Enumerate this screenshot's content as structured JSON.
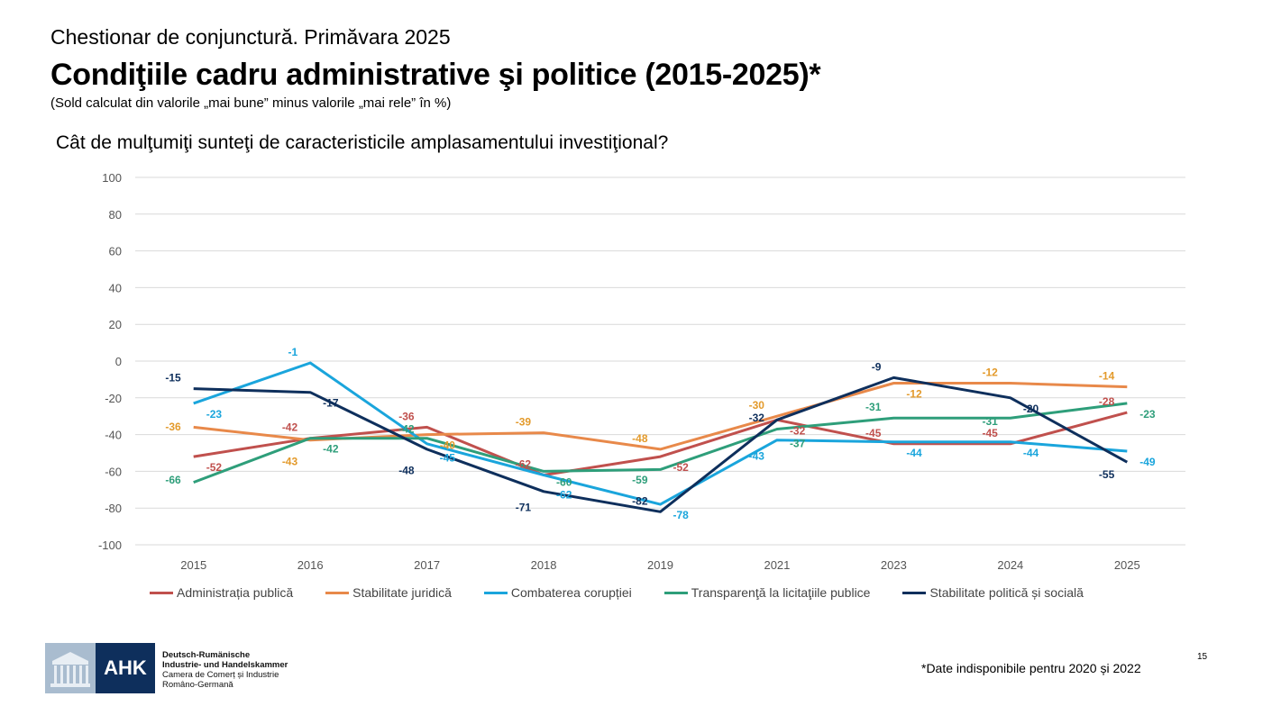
{
  "header": {
    "supertitle": "Chestionar de conjunctură. Primăvara 2025",
    "title": "Condiţiile cadru administrative şi politice (2015-2025)*",
    "subtitle": "(Sold calculat din valorile „mai bune” minus valorile „mai rele” în %)",
    "question": "Cât de mulţumiţi sunteţi de caracteristicile amplasamentului investiţional?"
  },
  "chart_data": {
    "type": "line",
    "categories": [
      "2015",
      "2016",
      "2017",
      "2018",
      "2019",
      "2021",
      "2023",
      "2024",
      "2025"
    ],
    "ylim": [
      -100,
      100
    ],
    "yticks": [
      100,
      80,
      60,
      40,
      20,
      0,
      -20,
      -40,
      -60,
      -80,
      -100
    ],
    "grid": true,
    "legend_position": "bottom",
    "series": [
      {
        "name": "Administrația publică",
        "color": "#c0504d",
        "values": [
          -52,
          -42,
          -36,
          -62,
          -52,
          -32,
          -45,
          -45,
          -28
        ]
      },
      {
        "name": "Stabilitate juridică",
        "color": "#e8894a",
        "values": [
          -36,
          -43,
          -40,
          -39,
          -48,
          -30,
          -12,
          -12,
          -14
        ]
      },
      {
        "name": "Combaterea corupției",
        "color": "#1aa5dc",
        "values": [
          -23,
          -1,
          -45,
          -62,
          -78,
          -43,
          -44,
          -44,
          -49
        ]
      },
      {
        "name": "Transparenţă la licitaţiile publice",
        "color": "#2e9e7a",
        "values": [
          -66,
          -42,
          -42,
          -60,
          -59,
          -37,
          -31,
          -31,
          -23
        ]
      },
      {
        "name": "Stabilitate politică și socială",
        "color": "#0e2f5c",
        "values": [
          -15,
          -17,
          -48,
          -71,
          -82,
          -32,
          -9,
          -20,
          -55
        ]
      }
    ]
  },
  "logo": {
    "mark": "AHK",
    "line1": "Deutsch-Rumänische",
    "line2": "Industrie- und Handelskammer",
    "line3": "Camera de Comerț și Industrie",
    "line4": "Româno-Germană"
  },
  "footnote": "*Date indisponibile pentru 2020 și 2022",
  "page_number": "15"
}
